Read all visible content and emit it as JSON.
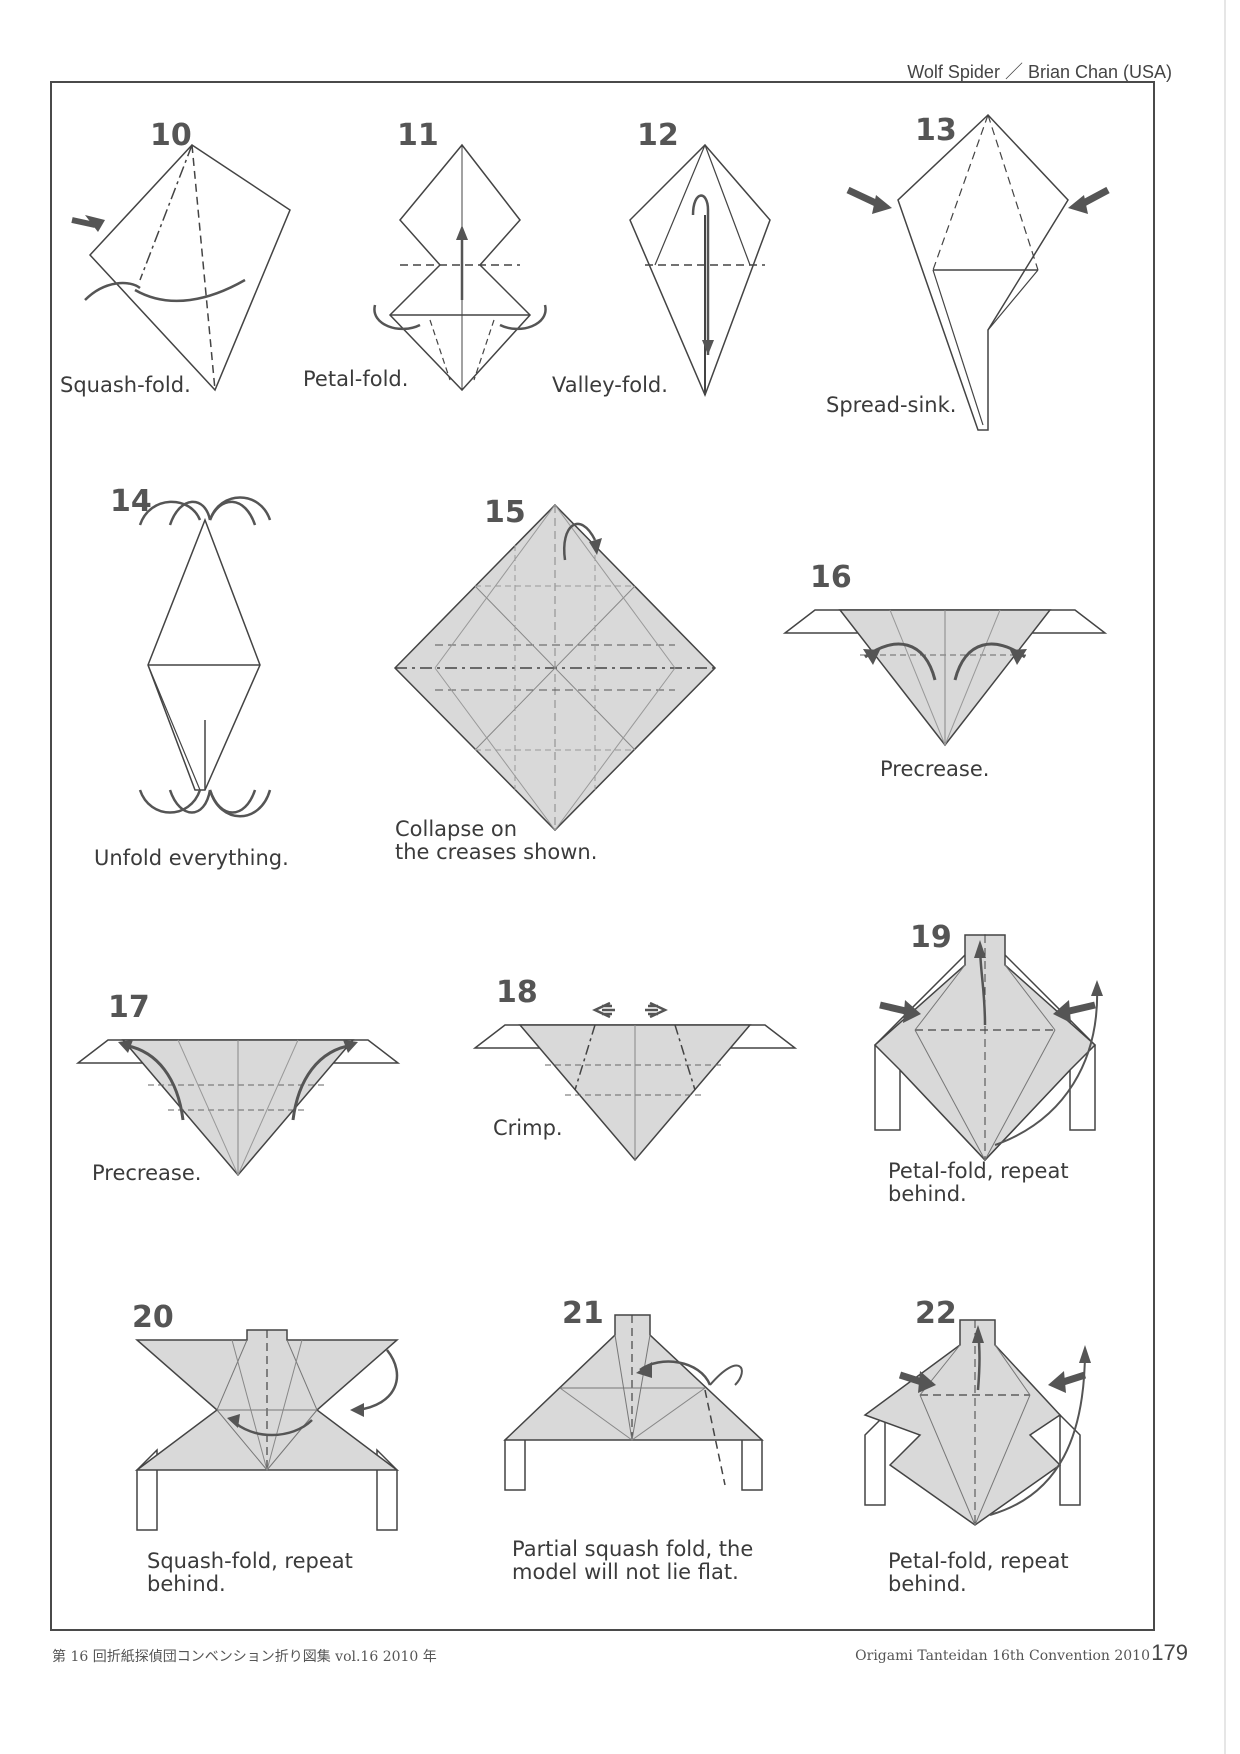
{
  "header": {
    "title": "Wolf Spider ／ Brian Chan (USA)"
  },
  "steps": [
    {
      "number": "10",
      "caption": "Squash-fold."
    },
    {
      "number": "11",
      "caption": "Petal-fold."
    },
    {
      "number": "12",
      "caption": "Valley-fold."
    },
    {
      "number": "13",
      "caption": "Spread-sink."
    },
    {
      "number": "14",
      "caption": "Unfold everything."
    },
    {
      "number": "15",
      "caption": "Collapse on\nthe creases shown."
    },
    {
      "number": "16",
      "caption": "Precrease."
    },
    {
      "number": "17",
      "caption": "Precrease."
    },
    {
      "number": "18",
      "caption": "Crimp."
    },
    {
      "number": "19",
      "caption": "Petal-fold, repeat\nbehind."
    },
    {
      "number": "20",
      "caption": "Squash-fold, repeat\nbehind."
    },
    {
      "number": "21",
      "caption": "Partial squash fold, the\nmodel will not lie flat."
    },
    {
      "number": "22",
      "caption": "Petal-fold, repeat\nbehind."
    }
  ],
  "footer": {
    "left": "第 16 回折紙探偵団コンベンション折り図集 vol.16 2010 年",
    "right": "Origami Tanteidan 16th Convention 2010",
    "page_number": "179"
  },
  "colors": {
    "paper_fill": "#d9d9d9",
    "line": "#444444",
    "arrow": "#555555",
    "frame": "#4a4a4a"
  }
}
